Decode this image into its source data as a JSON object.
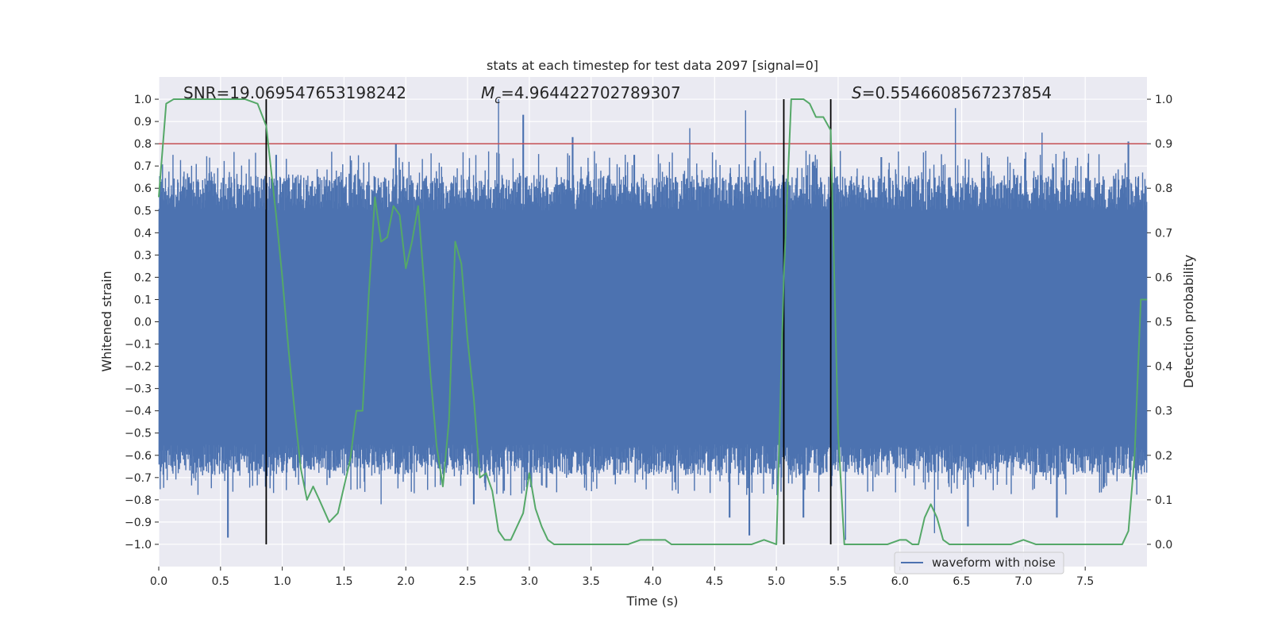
{
  "chart_data": {
    "type": "line",
    "title": "stats at each timestep for test data 2097 [signal=0]",
    "xlabel": "Time (s)",
    "ylabel": "Whitened strain",
    "y2label": "Detection probability",
    "xlim": [
      0.0,
      8.0
    ],
    "ylim": [
      -1.1,
      1.1
    ],
    "y2lim": [
      -0.05,
      1.05
    ],
    "x_ticks": [
      0.0,
      0.5,
      1.0,
      1.5,
      2.0,
      2.5,
      3.0,
      3.5,
      4.0,
      4.5,
      5.0,
      5.5,
      6.0,
      6.5,
      7.0,
      7.5
    ],
    "x_tick_labels": [
      "0.0",
      "0.5",
      "1.0",
      "1.5",
      "2.0",
      "2.5",
      "3.0",
      "3.5",
      "4.0",
      "4.5",
      "5.0",
      "5.5",
      "6.0",
      "6.5",
      "7.0",
      "7.5"
    ],
    "y_ticks": [
      1.0,
      0.9,
      0.8,
      0.7,
      0.6,
      0.5,
      0.4,
      0.3,
      0.2,
      0.1,
      0.0,
      -0.1,
      -0.2,
      -0.3,
      -0.4,
      -0.5,
      -0.6,
      -0.7,
      -0.8,
      -0.9,
      -1.0
    ],
    "y_tick_labels": [
      "1.0",
      "0.9",
      "0.8",
      "0.7",
      "0.6",
      "0.5",
      "0.4",
      "0.3",
      "0.2",
      "0.1",
      "0.0",
      "−0.1",
      "−0.2",
      "−0.3",
      "−0.4",
      "−0.5",
      "−0.6",
      "−0.7",
      "−0.8",
      "−0.9",
      "−1.0"
    ],
    "y2_ticks": [
      1.0,
      0.9,
      0.8,
      0.7,
      0.6,
      0.5,
      0.4,
      0.3,
      0.2,
      0.1,
      0.0
    ],
    "y2_tick_labels": [
      "1.0",
      "0.9",
      "0.8",
      "0.7",
      "0.6",
      "0.5",
      "0.4",
      "0.3",
      "0.2",
      "0.1",
      "0.0"
    ],
    "grid": true,
    "legend": {
      "placement": "lower-right",
      "entries": [
        "waveform with noise"
      ]
    },
    "annotations": {
      "snr": "SNR=19.069547653198242",
      "mc_symbol": "M",
      "mc_sub": "c",
      "mc_value": "=4.964422702789307",
      "s_symbol": "S",
      "s_value": "=0.5546608567237854"
    },
    "threshold": {
      "axis": "y2",
      "value": 0.9,
      "color": "#c44e52"
    },
    "vertical_markers": [
      0.87,
      5.06,
      5.44
    ],
    "series": [
      {
        "name": "waveform with noise",
        "axis": "y",
        "color": "#4c72b0",
        "style": "noise-envelope",
        "envelope": [
          0.5,
          0.55
        ],
        "peak_times": [
          0.55,
          0.95,
          1.75,
          1.92,
          2.75,
          2.95,
          3.35,
          3.85,
          4.3,
          4.75,
          5.3,
          5.85,
          6.45,
          7.15,
          7.85
        ],
        "peak_values": [
          0.55,
          0.75,
          0.65,
          0.8,
          1.0,
          0.93,
          0.83,
          0.75,
          0.87,
          0.95,
          0.72,
          0.74,
          0.96,
          0.85,
          0.81
        ],
        "trough_times": [
          0.56,
          1.8,
          2.55,
          2.85,
          4.62,
          4.78,
          5.22,
          5.56,
          6.28,
          6.55,
          7.27
        ],
        "trough_values": [
          -0.97,
          -0.82,
          -0.82,
          -0.78,
          -0.88,
          -0.96,
          -0.88,
          -0.98,
          -0.95,
          -0.92,
          -0.88
        ]
      },
      {
        "name": "",
        "axis": "y2",
        "color": "#55a868",
        "x": [
          0.0,
          0.06,
          0.12,
          0.2,
          0.3,
          0.4,
          0.5,
          0.6,
          0.7,
          0.8,
          0.87,
          0.95,
          1.0,
          1.05,
          1.1,
          1.15,
          1.2,
          1.25,
          1.3,
          1.38,
          1.45,
          1.5,
          1.55,
          1.6,
          1.65,
          1.7,
          1.75,
          1.8,
          1.85,
          1.9,
          1.95,
          2.0,
          2.05,
          2.1,
          2.15,
          2.2,
          2.25,
          2.3,
          2.35,
          2.4,
          2.45,
          2.5,
          2.55,
          2.6,
          2.65,
          2.7,
          2.75,
          2.8,
          2.85,
          2.9,
          2.95,
          3.0,
          3.05,
          3.1,
          3.15,
          3.2,
          3.25,
          3.3,
          3.4,
          3.5,
          3.6,
          3.7,
          3.8,
          3.9,
          4.0,
          4.1,
          4.15,
          4.2,
          4.3,
          4.4,
          4.5,
          4.6,
          4.7,
          4.8,
          4.9,
          5.0,
          5.06,
          5.12,
          5.17,
          5.22,
          5.27,
          5.32,
          5.38,
          5.44,
          5.5,
          5.55,
          5.6,
          5.7,
          5.8,
          5.9,
          6.0,
          6.05,
          6.1,
          6.15,
          6.2,
          6.25,
          6.3,
          6.35,
          6.4,
          6.5,
          6.6,
          6.7,
          6.8,
          6.9,
          7.0,
          7.1,
          7.2,
          7.3,
          7.4,
          7.5,
          7.6,
          7.7,
          7.8,
          7.85,
          7.9,
          7.95,
          8.0
        ],
        "y": [
          0.78,
          0.99,
          1.0,
          1.0,
          1.0,
          1.0,
          1.0,
          1.0,
          1.0,
          0.99,
          0.94,
          0.74,
          0.6,
          0.44,
          0.3,
          0.17,
          0.1,
          0.13,
          0.1,
          0.05,
          0.07,
          0.13,
          0.19,
          0.3,
          0.3,
          0.56,
          0.78,
          0.68,
          0.69,
          0.76,
          0.74,
          0.62,
          0.68,
          0.76,
          0.58,
          0.38,
          0.22,
          0.13,
          0.28,
          0.68,
          0.63,
          0.46,
          0.33,
          0.15,
          0.16,
          0.12,
          0.03,
          0.01,
          0.01,
          0.04,
          0.07,
          0.16,
          0.08,
          0.04,
          0.01,
          0.0,
          0.0,
          0.0,
          0.0,
          0.0,
          0.0,
          0.0,
          0.0,
          0.01,
          0.01,
          0.01,
          0.0,
          0.0,
          0.0,
          0.0,
          0.0,
          0.0,
          0.0,
          0.0,
          0.01,
          0.0,
          0.6,
          1.0,
          1.0,
          1.0,
          0.99,
          0.96,
          0.96,
          0.93,
          0.25,
          0.0,
          0.0,
          0.0,
          0.0,
          0.0,
          0.01,
          0.01,
          0.0,
          0.0,
          0.06,
          0.09,
          0.06,
          0.01,
          0.0,
          0.0,
          0.0,
          0.0,
          0.0,
          0.0,
          0.01,
          0.0,
          0.0,
          0.0,
          0.0,
          0.0,
          0.0,
          0.0,
          0.0,
          0.03,
          0.2,
          0.55,
          0.55
        ]
      }
    ]
  }
}
